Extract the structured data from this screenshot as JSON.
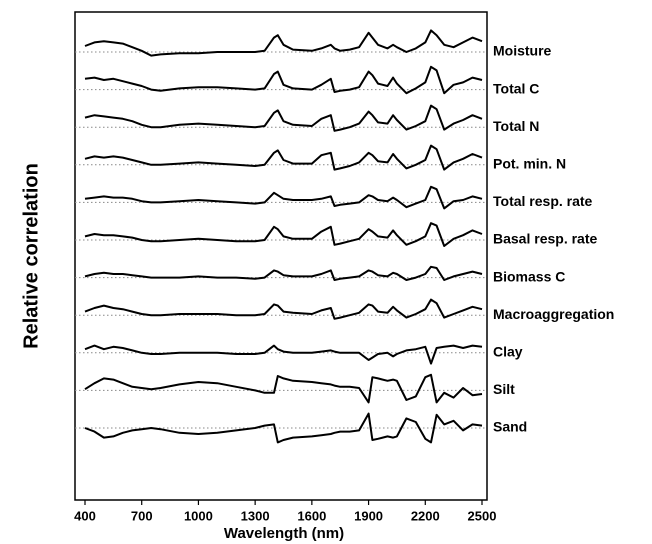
{
  "chart_data": {
    "type": "line",
    "ylabel": "Relative correlation",
    "xlabel": "Wavelength (nm)",
    "xlim": [
      400,
      2500
    ],
    "xticks": [
      400,
      700,
      1000,
      1300,
      1600,
      1900,
      2200,
      2500
    ],
    "zero_lines": true,
    "x": [
      400,
      450,
      500,
      550,
      600,
      650,
      700,
      750,
      800,
      900,
      1000,
      1100,
      1200,
      1300,
      1350,
      1400,
      1420,
      1450,
      1500,
      1600,
      1650,
      1700,
      1720,
      1750,
      1800,
      1850,
      1900,
      1920,
      1950,
      2000,
      2030,
      2050,
      2100,
      2150,
      2200,
      2230,
      2260,
      2300,
      2350,
      2400,
      2450,
      2500
    ],
    "series": [
      {
        "name": "Moisture",
        "color": "#000000",
        "values": [
          0.5,
          0.8,
          0.9,
          0.8,
          0.7,
          0.4,
          0.1,
          -0.3,
          -0.2,
          -0.1,
          -0.1,
          0,
          0,
          0,
          0.1,
          1.2,
          1.4,
          0.6,
          0.2,
          0.1,
          0.3,
          0.6,
          0.3,
          0.1,
          0.2,
          0.4,
          1.6,
          1.2,
          0.6,
          0.3,
          0.6,
          0.4,
          0,
          0.3,
          0.8,
          1.8,
          1.4,
          0.6,
          0.4,
          0.8,
          1.2,
          0.9
        ]
      },
      {
        "name": "Total C",
        "color": "#000000",
        "values": [
          0.9,
          1.0,
          0.8,
          0.9,
          0.7,
          0.5,
          0.3,
          0,
          -0.1,
          0.1,
          0.2,
          0.2,
          0.1,
          0,
          0.1,
          1.3,
          1.5,
          0.4,
          0.1,
          0,
          0.4,
          0.9,
          -0.2,
          -0.1,
          0,
          0.2,
          1.5,
          1.2,
          0.5,
          0.3,
          1.0,
          0.5,
          -0.3,
          0.1,
          0.6,
          1.9,
          1.6,
          -0.3,
          0.4,
          0.6,
          1.0,
          0.8
        ]
      },
      {
        "name": "Total N",
        "color": "#000000",
        "values": [
          0.8,
          1.0,
          0.9,
          0.8,
          0.7,
          0.5,
          0.2,
          0,
          0,
          0.2,
          0.3,
          0.2,
          0.1,
          0,
          0.1,
          1.2,
          1.4,
          0.5,
          0.2,
          0.1,
          0.7,
          1.0,
          -0.3,
          -0.2,
          0,
          0.3,
          1.3,
          1.0,
          0.4,
          0.3,
          1.0,
          0.6,
          -0.2,
          0.1,
          0.5,
          1.8,
          1.5,
          -0.2,
          0.3,
          0.6,
          1.0,
          0.7
        ]
      },
      {
        "name": "Pot. min. N",
        "color": "#000000",
        "values": [
          0.5,
          0.7,
          0.6,
          0.7,
          0.6,
          0.4,
          0.2,
          0,
          0,
          0.1,
          0.2,
          0.1,
          0,
          -0.1,
          0,
          1.0,
          1.2,
          0.4,
          0.1,
          0.1,
          0.8,
          1.0,
          -0.4,
          -0.3,
          -0.1,
          0.2,
          1.0,
          0.8,
          0.3,
          0.2,
          0.9,
          0.5,
          -0.3,
          0,
          0.4,
          1.6,
          1.3,
          -0.4,
          0.2,
          0.5,
          0.9,
          0.6
        ]
      },
      {
        "name": "Total resp. rate",
        "color": "#000000",
        "values": [
          0.3,
          0.4,
          0.5,
          0.4,
          0.4,
          0.3,
          0.1,
          0,
          0,
          0.1,
          0.2,
          0.1,
          0,
          -0.1,
          0,
          0.8,
          0.6,
          0.3,
          0.2,
          0.2,
          0.3,
          0.5,
          -0.3,
          -0.2,
          -0.1,
          0,
          0.6,
          0.5,
          0.2,
          0.1,
          0.4,
          0.2,
          -0.4,
          -0.1,
          0.2,
          1.3,
          1.1,
          -0.5,
          0.1,
          0.2,
          0.5,
          0.3
        ]
      },
      {
        "name": "Basal resp. rate",
        "color": "#000000",
        "values": [
          0.3,
          0.5,
          0.4,
          0.4,
          0.3,
          0.2,
          0,
          -0.1,
          -0.1,
          0,
          0.1,
          0,
          -0.1,
          -0.1,
          0,
          1.1,
          0.9,
          0.3,
          0.1,
          0.1,
          0.7,
          1.1,
          -0.4,
          -0.3,
          -0.1,
          0.1,
          0.9,
          0.7,
          0.3,
          0.2,
          0.8,
          0.4,
          -0.4,
          -0.1,
          0.3,
          1.4,
          1.2,
          -0.5,
          0.1,
          0.4,
          0.8,
          0.5
        ]
      },
      {
        "name": "Biomass C",
        "color": "#000000",
        "values": [
          0.1,
          0.3,
          0.4,
          0.3,
          0.3,
          0.2,
          0.1,
          0,
          0,
          0,
          0.1,
          0,
          0,
          -0.1,
          0,
          0.6,
          0.5,
          0.2,
          0.1,
          0.1,
          0.3,
          0.6,
          -0.2,
          -0.1,
          0,
          0.1,
          0.6,
          0.5,
          0.2,
          0.1,
          0.4,
          0.3,
          -0.2,
          0,
          0.3,
          0.9,
          0.8,
          -0.2,
          0.1,
          0.3,
          0.5,
          0.3
        ]
      },
      {
        "name": "Macroaggregation",
        "color": "#000000",
        "values": [
          0.3,
          0.6,
          0.8,
          0.6,
          0.5,
          0.3,
          0.1,
          0,
          0,
          0.1,
          0.1,
          0.1,
          0,
          0,
          0.1,
          0.9,
          0.8,
          0.3,
          0.2,
          0.1,
          0.4,
          0.6,
          -0.3,
          -0.2,
          0,
          0.2,
          0.9,
          0.8,
          0.3,
          0.2,
          0.7,
          0.4,
          -0.2,
          0.1,
          0.5,
          1.3,
          1.0,
          -0.2,
          0.1,
          0.4,
          0.7,
          0.5
        ]
      },
      {
        "name": "Clay",
        "color": "#000000",
        "values": [
          0.3,
          0.6,
          0.3,
          0.5,
          0.4,
          0.2,
          0,
          -0.1,
          -0.1,
          0,
          0,
          0,
          -0.1,
          -0.1,
          0,
          0.6,
          0.3,
          0.1,
          0,
          0,
          0.1,
          0.2,
          0.1,
          0,
          0,
          0,
          -0.6,
          -0.4,
          -0.1,
          0,
          -0.3,
          -0.1,
          0.2,
          0.3,
          0.5,
          -0.9,
          0.4,
          0.5,
          0.6,
          0.4,
          0.6,
          0.5
        ]
      },
      {
        "name": "Silt",
        "color": "#000000",
        "values": [
          0.1,
          0.6,
          1.0,
          0.9,
          0.6,
          0.3,
          0.2,
          0.1,
          0.2,
          0.5,
          0.7,
          0.6,
          0.3,
          0,
          -0.2,
          -0.2,
          1.2,
          1.0,
          0.8,
          0.7,
          0.6,
          0.5,
          0.4,
          0.3,
          0.3,
          0.2,
          -1.0,
          1.1,
          1.0,
          0.8,
          0.9,
          0.8,
          -0.8,
          -0.5,
          1.1,
          1.3,
          -1.0,
          -0.2,
          -0.6,
          0.2,
          -0.4,
          -0.3
        ]
      },
      {
        "name": "Sand",
        "color": "#000000",
        "values": [
          0,
          -0.3,
          -0.8,
          -0.7,
          -0.4,
          -0.2,
          -0.1,
          0,
          -0.1,
          -0.4,
          -0.5,
          -0.4,
          -0.2,
          0,
          0.2,
          0.3,
          -1.2,
          -1.0,
          -0.8,
          -0.7,
          -0.6,
          -0.5,
          -0.4,
          -0.3,
          -0.3,
          -0.2,
          1.2,
          -1.0,
          -0.9,
          -0.7,
          -0.8,
          -0.7,
          0.8,
          0.5,
          -0.9,
          -1.2,
          1.1,
          0.3,
          0.6,
          -0.2,
          0.3,
          0.2
        ]
      }
    ]
  }
}
